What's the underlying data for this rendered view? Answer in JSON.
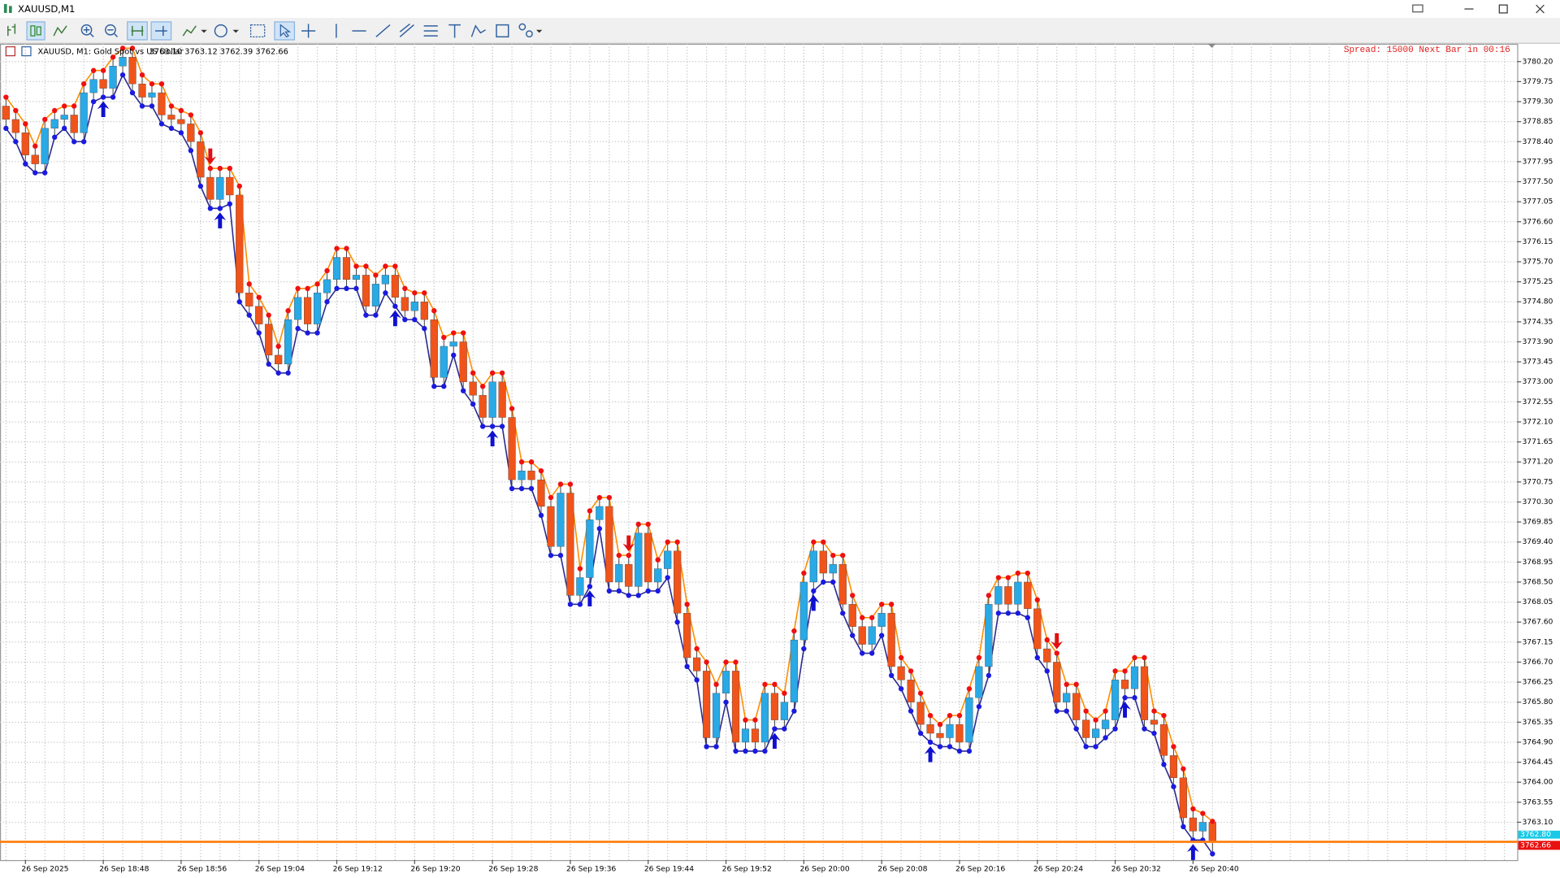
{
  "window": {
    "title": "XAUUSD,M1"
  },
  "chart_data": {
    "type": "candlestick",
    "symbol_info": "XAUUSD, M1:  Gold Spot vs US Dollar",
    "ohlc_text": "3763.10 3763.12 3762.39 3762.66",
    "status": "Spread: 15000 Next Bar in 00:16",
    "up_color": "#29a9e6",
    "down_color": "#f0541a",
    "high_color": "#f01010",
    "low_color": "#1a1ae0",
    "high_line_color": "#ff8c00",
    "low_line_color": "#2a2a90",
    "bid_line_color": "#ff7f0f",
    "ask": {
      "value": 3762.8,
      "label": "3762.80"
    },
    "grid": true,
    "ylim": [
      3762.25,
      3780.6
    ],
    "yticks": [
      {
        "value": 3780.2,
        "label": "3780.20"
      },
      {
        "value": 3779.75,
        "label": "3779.75"
      },
      {
        "value": 3779.3,
        "label": "3779.30"
      },
      {
        "value": 3778.85,
        "label": "3778.85"
      },
      {
        "value": 3778.4,
        "label": "3778.40"
      },
      {
        "value": 3777.95,
        "label": "3777.95"
      },
      {
        "value": 3777.5,
        "label": "3777.50"
      },
      {
        "value": 3777.05,
        "label": "3777.05"
      },
      {
        "value": 3776.6,
        "label": "3776.60"
      },
      {
        "value": 3776.15,
        "label": "3776.15"
      },
      {
        "value": 3775.7,
        "label": "3775.70"
      },
      {
        "value": 3775.25,
        "label": "3775.25"
      },
      {
        "value": 3774.8,
        "label": "3774.80"
      },
      {
        "value": 3774.35,
        "label": "3774.35"
      },
      {
        "value": 3773.9,
        "label": "3773.90"
      },
      {
        "value": 3773.45,
        "label": "3773.45"
      },
      {
        "value": 3773,
        "label": "3773.00"
      },
      {
        "value": 3772.55,
        "label": "3772.55"
      },
      {
        "value": 3772.1,
        "label": "3772.10"
      },
      {
        "value": 3771.65,
        "label": "3771.65"
      },
      {
        "value": 3771.2,
        "label": "3771.20"
      },
      {
        "value": 3770.75,
        "label": "3770.75"
      },
      {
        "value": 3770.3,
        "label": "3770.30"
      },
      {
        "value": 3769.85,
        "label": "3769.85"
      },
      {
        "value": 3769.4,
        "label": "3769.40"
      },
      {
        "value": 3768.95,
        "label": "3768.95"
      },
      {
        "value": 3768.5,
        "label": "3768.50"
      },
      {
        "value": 3768.05,
        "label": "3768.05"
      },
      {
        "value": 3767.6,
        "label": "3767.60"
      },
      {
        "value": 3767.15,
        "label": "3767.15"
      },
      {
        "value": 3766.7,
        "label": "3766.70"
      },
      {
        "value": 3766.25,
        "label": "3766.25"
      },
      {
        "value": 3765.8,
        "label": "3765.80"
      },
      {
        "value": 3765.35,
        "label": "3765.35"
      },
      {
        "value": 3764.9,
        "label": "3764.90"
      },
      {
        "value": 3764.45,
        "label": "3764.45"
      },
      {
        "value": 3764,
        "label": "3764.00"
      },
      {
        "value": 3763.55,
        "label": "3763.55"
      },
      {
        "value": 3763.1,
        "label": "3763.10"
      }
    ],
    "xticks": [
      {
        "value": 2,
        "label": "26 Sep 2025"
      },
      {
        "value": 10,
        "label": "26 Sep 18:48"
      },
      {
        "value": 18,
        "label": "26 Sep 18:56"
      },
      {
        "value": 26,
        "label": "26 Sep 19:04"
      },
      {
        "value": 34,
        "label": "26 Sep 19:12"
      },
      {
        "value": 42,
        "label": "26 Sep 19:20"
      },
      {
        "value": 50,
        "label": "26 Sep 19:28"
      },
      {
        "value": 58,
        "label": "26 Sep 19:36"
      },
      {
        "value": 66,
        "label": "26 Sep 19:44"
      },
      {
        "value": 74,
        "label": "26 Sep 19:52"
      },
      {
        "value": 82,
        "label": "26 Sep 20:00"
      },
      {
        "value": 90,
        "label": "26 Sep 20:08"
      },
      {
        "value": 98,
        "label": "26 Sep 20:16"
      },
      {
        "value": 106,
        "label": "26 Sep 20:24"
      },
      {
        "value": 114,
        "label": "26 Sep 20:32"
      },
      {
        "value": 122,
        "label": "26 Sep 20:40"
      }
    ],
    "arrows": [
      {
        "index": 10,
        "direction": "up"
      },
      {
        "index": 21,
        "direction": "down"
      },
      {
        "index": 22,
        "direction": "up"
      },
      {
        "index": 40,
        "direction": "up"
      },
      {
        "index": 50,
        "direction": "up"
      },
      {
        "index": 60,
        "direction": "up"
      },
      {
        "index": 64,
        "direction": "down"
      },
      {
        "index": 79,
        "direction": "up"
      },
      {
        "index": 83,
        "direction": "up"
      },
      {
        "index": 95,
        "direction": "up"
      },
      {
        "index": 108,
        "direction": "down"
      },
      {
        "index": 115,
        "direction": "up"
      },
      {
        "index": 122,
        "direction": "up"
      }
    ],
    "ohlc": [
      [
        3779.2,
        3779.4,
        3778.7,
        3778.9
      ],
      [
        3778.9,
        3779.1,
        3778.4,
        3778.6
      ],
      [
        3778.6,
        3778.8,
        3777.9,
        3778.1
      ],
      [
        3778.1,
        3778.3,
        3777.7,
        3777.9
      ],
      [
        3777.9,
        3778.9,
        3777.7,
        3778.7
      ],
      [
        3778.7,
        3779.1,
        3778.5,
        3778.9
      ],
      [
        3778.9,
        3779.2,
        3778.7,
        3779.0
      ],
      [
        3779.0,
        3779.2,
        3778.4,
        3778.6
      ],
      [
        3778.6,
        3779.7,
        3778.4,
        3779.5
      ],
      [
        3779.5,
        3780.0,
        3779.3,
        3779.8
      ],
      [
        3779.8,
        3780.0,
        3779.4,
        3779.6
      ],
      [
        3779.6,
        3780.3,
        3779.4,
        3780.1
      ],
      [
        3780.1,
        3780.5,
        3779.9,
        3780.3
      ],
      [
        3780.3,
        3780.5,
        3779.5,
        3779.7
      ],
      [
        3779.7,
        3779.9,
        3779.2,
        3779.4
      ],
      [
        3779.4,
        3779.7,
        3779.2,
        3779.5
      ],
      [
        3779.5,
        3779.7,
        3778.8,
        3779.0
      ],
      [
        3779.0,
        3779.2,
        3778.7,
        3778.9
      ],
      [
        3778.9,
        3779.1,
        3778.6,
        3778.8
      ],
      [
        3778.8,
        3779.0,
        3778.2,
        3778.4
      ],
      [
        3778.4,
        3778.6,
        3777.4,
        3777.6
      ],
      [
        3777.6,
        3777.8,
        3776.9,
        3777.1
      ],
      [
        3777.1,
        3777.8,
        3776.9,
        3777.6
      ],
      [
        3777.6,
        3777.8,
        3777.0,
        3777.2
      ],
      [
        3777.2,
        3777.4,
        3774.8,
        3775.0
      ],
      [
        3775.0,
        3775.2,
        3774.5,
        3774.7
      ],
      [
        3774.7,
        3774.9,
        3774.1,
        3774.3
      ],
      [
        3774.3,
        3774.5,
        3773.4,
        3773.6
      ],
      [
        3773.6,
        3773.8,
        3773.2,
        3773.4
      ],
      [
        3773.4,
        3774.6,
        3773.2,
        3774.4
      ],
      [
        3774.4,
        3775.1,
        3774.2,
        3774.9
      ],
      [
        3774.9,
        3775.1,
        3774.1,
        3774.3
      ],
      [
        3774.3,
        3775.2,
        3774.1,
        3775.0
      ],
      [
        3775.0,
        3775.5,
        3774.8,
        3775.3
      ],
      [
        3775.3,
        3776.0,
        3775.1,
        3775.8
      ],
      [
        3775.8,
        3776.0,
        3775.1,
        3775.3
      ],
      [
        3775.3,
        3775.6,
        3775.1,
        3775.4
      ],
      [
        3775.4,
        3775.6,
        3774.5,
        3774.7
      ],
      [
        3774.7,
        3775.4,
        3774.5,
        3775.2
      ],
      [
        3775.2,
        3775.6,
        3775.0,
        3775.4
      ],
      [
        3775.4,
        3775.6,
        3774.7,
        3774.9
      ],
      [
        3774.9,
        3775.1,
        3774.4,
        3774.6
      ],
      [
        3774.6,
        3775.0,
        3774.4,
        3774.8
      ],
      [
        3774.8,
        3775.0,
        3774.2,
        3774.4
      ],
      [
        3774.4,
        3774.6,
        3772.9,
        3773.1
      ],
      [
        3773.1,
        3774.0,
        3772.9,
        3773.8
      ],
      [
        3773.8,
        3774.1,
        3773.6,
        3773.9
      ],
      [
        3773.9,
        3774.1,
        3772.8,
        3773.0
      ],
      [
        3773.0,
        3773.2,
        3772.5,
        3772.7
      ],
      [
        3772.7,
        3772.9,
        3772.0,
        3772.2
      ],
      [
        3772.2,
        3773.2,
        3772.0,
        3773.0
      ],
      [
        3773.0,
        3773.2,
        3772.0,
        3772.2
      ],
      [
        3772.2,
        3772.4,
        3770.6,
        3770.8
      ],
      [
        3770.8,
        3771.2,
        3770.6,
        3771.0
      ],
      [
        3771.0,
        3771.2,
        3770.6,
        3770.8
      ],
      [
        3770.8,
        3771.0,
        3770.0,
        3770.2
      ],
      [
        3770.2,
        3770.4,
        3769.1,
        3769.3
      ],
      [
        3769.3,
        3770.7,
        3769.1,
        3770.5
      ],
      [
        3770.5,
        3770.7,
        3768.0,
        3768.2
      ],
      [
        3768.2,
        3768.8,
        3768.0,
        3768.6
      ],
      [
        3768.6,
        3770.1,
        3768.4,
        3769.9
      ],
      [
        3769.9,
        3770.4,
        3769.7,
        3770.2
      ],
      [
        3770.2,
        3770.4,
        3768.3,
        3768.5
      ],
      [
        3768.5,
        3769.1,
        3768.3,
        3768.9
      ],
      [
        3768.9,
        3769.1,
        3768.2,
        3768.4
      ],
      [
        3768.4,
        3769.8,
        3768.2,
        3769.6
      ],
      [
        3769.6,
        3769.8,
        3768.3,
        3768.5
      ],
      [
        3768.5,
        3769.0,
        3768.3,
        3768.8
      ],
      [
        3768.8,
        3769.4,
        3768.6,
        3769.2
      ],
      [
        3769.2,
        3769.4,
        3767.6,
        3767.8
      ],
      [
        3767.8,
        3768.0,
        3766.6,
        3766.8
      ],
      [
        3766.8,
        3767.0,
        3766.3,
        3766.5
      ],
      [
        3766.5,
        3766.7,
        3764.8,
        3765.0
      ],
      [
        3765.0,
        3766.2,
        3764.8,
        3766.0
      ],
      [
        3766.0,
        3766.7,
        3765.8,
        3766.5
      ],
      [
        3766.5,
        3766.7,
        3764.7,
        3764.9
      ],
      [
        3764.9,
        3765.4,
        3764.7,
        3765.2
      ],
      [
        3765.2,
        3765.4,
        3764.7,
        3764.9
      ],
      [
        3764.9,
        3766.2,
        3764.7,
        3766.0
      ],
      [
        3766.0,
        3766.2,
        3765.2,
        3765.4
      ],
      [
        3765.4,
        3766.0,
        3765.2,
        3765.8
      ],
      [
        3765.8,
        3767.4,
        3765.6,
        3767.2
      ],
      [
        3767.2,
        3768.7,
        3767.0,
        3768.5
      ],
      [
        3768.5,
        3769.4,
        3768.3,
        3769.2
      ],
      [
        3769.2,
        3769.4,
        3768.5,
        3768.7
      ],
      [
        3768.7,
        3769.1,
        3768.5,
        3768.9
      ],
      [
        3768.9,
        3769.1,
        3767.8,
        3768.0
      ],
      [
        3768.0,
        3768.2,
        3767.3,
        3767.5
      ],
      [
        3767.5,
        3767.7,
        3766.9,
        3767.1
      ],
      [
        3767.1,
        3767.7,
        3766.9,
        3767.5
      ],
      [
        3767.5,
        3768.0,
        3767.3,
        3767.8
      ],
      [
        3767.8,
        3768.0,
        3766.4,
        3766.6
      ],
      [
        3766.6,
        3766.8,
        3766.1,
        3766.3
      ],
      [
        3766.3,
        3766.5,
        3765.6,
        3765.8
      ],
      [
        3765.8,
        3766.0,
        3765.1,
        3765.3
      ],
      [
        3765.3,
        3765.5,
        3764.9,
        3765.1
      ],
      [
        3765.1,
        3765.3,
        3764.8,
        3765.0
      ],
      [
        3765.0,
        3765.5,
        3764.8,
        3765.3
      ],
      [
        3765.3,
        3765.5,
        3764.7,
        3764.9
      ],
      [
        3764.9,
        3766.1,
        3764.7,
        3765.9
      ],
      [
        3765.9,
        3766.8,
        3765.7,
        3766.6
      ],
      [
        3766.6,
        3768.2,
        3766.4,
        3768.0
      ],
      [
        3768.0,
        3768.6,
        3767.8,
        3768.4
      ],
      [
        3768.4,
        3768.6,
        3767.8,
        3768.0
      ],
      [
        3768.0,
        3768.7,
        3767.8,
        3768.5
      ],
      [
        3768.5,
        3768.7,
        3767.7,
        3767.9
      ],
      [
        3767.9,
        3768.1,
        3766.8,
        3767.0
      ],
      [
        3767.0,
        3767.2,
        3766.5,
        3766.7
      ],
      [
        3766.7,
        3766.9,
        3765.6,
        3765.8
      ],
      [
        3765.8,
        3766.2,
        3765.6,
        3766.0
      ],
      [
        3766.0,
        3766.2,
        3765.2,
        3765.4
      ],
      [
        3765.4,
        3765.6,
        3764.8,
        3765.0
      ],
      [
        3765.0,
        3765.4,
        3764.8,
        3765.2
      ],
      [
        3765.2,
        3765.6,
        3765.0,
        3765.4
      ],
      [
        3765.4,
        3766.5,
        3765.2,
        3766.3
      ],
      [
        3766.3,
        3766.5,
        3765.9,
        3766.1
      ],
      [
        3766.1,
        3766.8,
        3765.9,
        3766.6
      ],
      [
        3766.6,
        3766.8,
        3765.2,
        3765.4
      ],
      [
        3765.4,
        3765.6,
        3765.1,
        3765.3
      ],
      [
        3765.3,
        3765.5,
        3764.4,
        3764.6
      ],
      [
        3764.6,
        3764.8,
        3763.9,
        3764.1
      ],
      [
        3764.1,
        3764.3,
        3763.0,
        3763.2
      ],
      [
        3763.2,
        3763.4,
        3762.7,
        3762.9
      ],
      [
        3762.9,
        3763.3,
        3762.7,
        3763.1
      ],
      [
        3763.1,
        3763.12,
        3762.39,
        3762.66
      ]
    ]
  }
}
